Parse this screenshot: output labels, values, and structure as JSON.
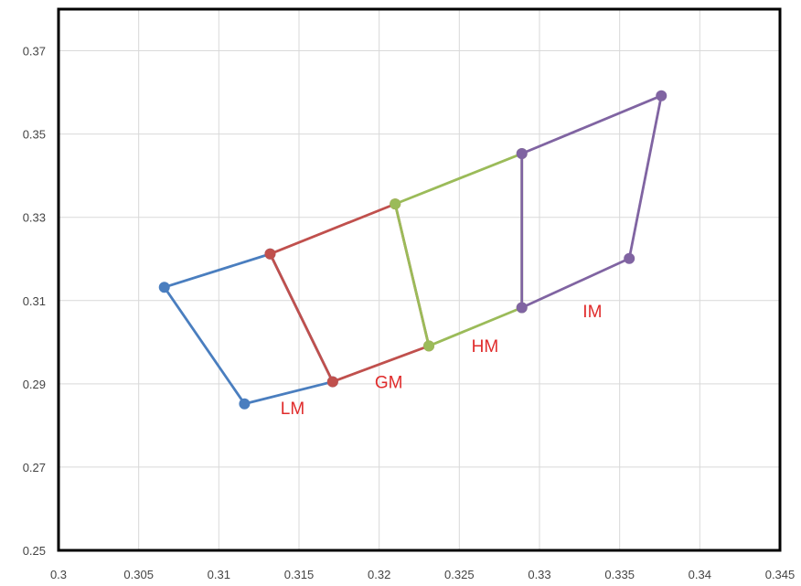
{
  "chart_data": {
    "type": "line",
    "title": "",
    "xlabel": "",
    "ylabel": "",
    "xlim": [
      0.3,
      0.345
    ],
    "ylim": [
      0.25,
      0.38
    ],
    "grid": true,
    "x_ticks": [
      "0.3",
      "0.305",
      "0.31",
      "0.315",
      "0.32",
      "0.325",
      "0.33",
      "0.335",
      "0.34",
      "0.345"
    ],
    "y_ticks": [
      "0.25",
      "0.27",
      "0.29",
      "0.31",
      "0.33",
      "0.35",
      "0.37"
    ],
    "series": [
      {
        "name": "LM",
        "color": "#4a7ebf",
        "points": [
          [
            0.3066,
            0.3132
          ],
          [
            0.3132,
            0.3212
          ],
          [
            0.3171,
            0.2905
          ],
          [
            0.3116,
            0.2852
          ],
          [
            0.3066,
            0.3132
          ]
        ]
      },
      {
        "name": "GM",
        "color": "#c0504d",
        "points": [
          [
            0.3132,
            0.3212
          ],
          [
            0.321,
            0.3332
          ],
          [
            0.3231,
            0.2991
          ],
          [
            0.3171,
            0.2905
          ],
          [
            0.3132,
            0.3212
          ]
        ]
      },
      {
        "name": "HM",
        "color": "#9bbb59",
        "points": [
          [
            0.321,
            0.3332
          ],
          [
            0.3289,
            0.3453
          ],
          [
            0.3289,
            0.3083
          ],
          [
            0.3231,
            0.2991
          ],
          [
            0.321,
            0.3332
          ]
        ]
      },
      {
        "name": "IM",
        "color": "#8064a2",
        "points": [
          [
            0.3289,
            0.3453
          ],
          [
            0.3376,
            0.3592
          ],
          [
            0.3356,
            0.3201
          ],
          [
            0.3289,
            0.3083
          ],
          [
            0.3289,
            0.3453
          ]
        ]
      }
    ],
    "annotations": [
      {
        "text": "LM",
        "x": 0.3146,
        "y": 0.2827
      },
      {
        "text": "GM",
        "x": 0.3206,
        "y": 0.289
      },
      {
        "text": "HM",
        "x": 0.3266,
        "y": 0.2976
      },
      {
        "text": "IM",
        "x": 0.3333,
        "y": 0.306
      }
    ],
    "colors": {
      "label": "#e02b2b",
      "grid": "#d9d9d9",
      "frame": "#000000"
    }
  }
}
